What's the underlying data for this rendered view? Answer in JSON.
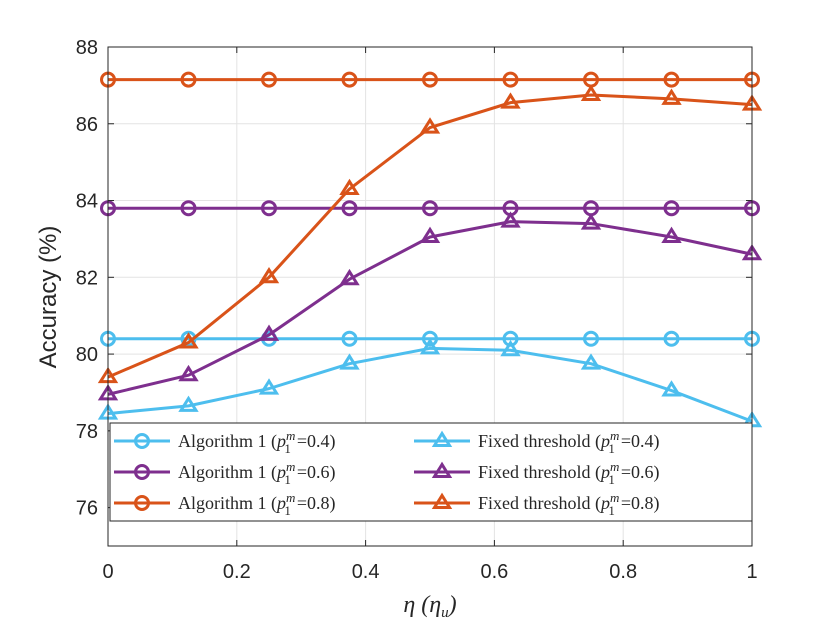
{
  "chart_data": {
    "type": "line",
    "x": [
      0,
      0.125,
      0.25,
      0.375,
      0.5,
      0.625,
      0.75,
      0.875,
      1
    ],
    "xlabel": "η (η_u)",
    "ylabel": "Accuracy (%)",
    "xlim": [
      0,
      1
    ],
    "ylim": [
      75,
      88
    ],
    "xticks": [
      0,
      0.2,
      0.4,
      0.6,
      0.8,
      1
    ],
    "xtick_labels": [
      "0",
      "0.2",
      "0.4",
      "0.6",
      "0.8",
      "1"
    ],
    "yticks": [
      76,
      78,
      80,
      82,
      84,
      86,
      88
    ],
    "ytick_labels": [
      "76",
      "78",
      "80",
      "82",
      "84",
      "86",
      "88"
    ],
    "grid": true,
    "legend_position": "lower-center",
    "series": [
      {
        "name": "Algorithm 1 (p1m=0.4)",
        "legend_prefix": "Algorithm 1",
        "p_value": "0.4",
        "color": "#4DBEEE",
        "marker": "circle",
        "values": [
          80.4,
          80.4,
          80.4,
          80.4,
          80.4,
          80.4,
          80.4,
          80.4,
          80.4
        ]
      },
      {
        "name": "Algorithm 1 (p1m=0.6)",
        "legend_prefix": "Algorithm 1",
        "p_value": "0.6",
        "color": "#7E2F8E",
        "marker": "circle",
        "values": [
          83.8,
          83.8,
          83.8,
          83.8,
          83.8,
          83.8,
          83.8,
          83.8,
          83.8
        ]
      },
      {
        "name": "Algorithm 1 (p1m=0.8)",
        "legend_prefix": "Algorithm 1",
        "p_value": "0.8",
        "color": "#D95319",
        "marker": "circle",
        "values": [
          87.15,
          87.15,
          87.15,
          87.15,
          87.15,
          87.15,
          87.15,
          87.15,
          87.15
        ]
      },
      {
        "name": "Fixed threshold (p1m=0.4)",
        "legend_prefix": "Fixed threshold",
        "p_value": "0.4",
        "color": "#4DBEEE",
        "marker": "triangle",
        "values": [
          78.45,
          78.65,
          79.1,
          79.75,
          80.15,
          80.1,
          79.75,
          79.05,
          78.25
        ]
      },
      {
        "name": "Fixed threshold (p1m=0.6)",
        "legend_prefix": "Fixed threshold",
        "p_value": "0.6",
        "color": "#7E2F8E",
        "marker": "triangle",
        "values": [
          78.95,
          79.45,
          80.5,
          81.95,
          83.05,
          83.45,
          83.4,
          83.05,
          82.6
        ]
      },
      {
        "name": "Fixed threshold (p1m=0.8)",
        "legend_prefix": "Fixed threshold",
        "p_value": "0.8",
        "color": "#D95319",
        "marker": "triangle",
        "values": [
          79.4,
          80.3,
          82.0,
          84.3,
          85.9,
          86.55,
          86.75,
          86.65,
          86.5
        ]
      }
    ]
  }
}
